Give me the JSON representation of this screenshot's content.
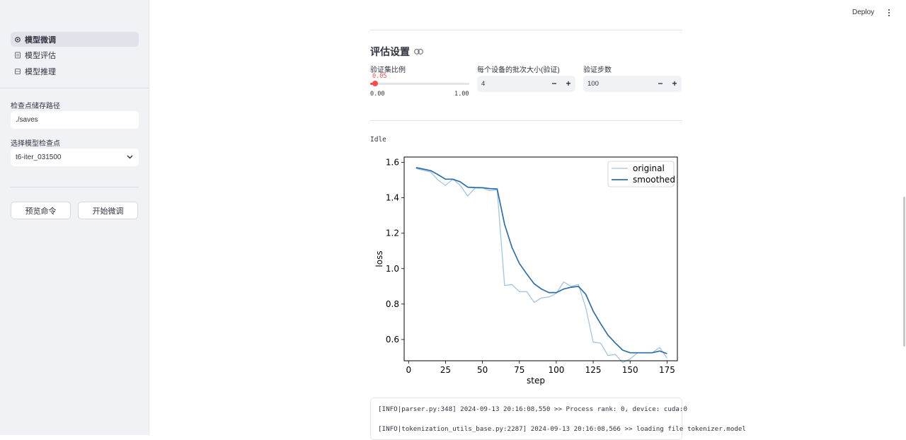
{
  "sidebar": {
    "nav": [
      {
        "label": "模型微调",
        "icon": "gear-icon",
        "active": true
      },
      {
        "label": "模型评估",
        "icon": "document-icon",
        "active": false
      },
      {
        "label": "模型推理",
        "icon": "grid-icon",
        "active": false
      }
    ],
    "checkpoint_path_label": "检查点储存路径",
    "checkpoint_path_value": "./saves",
    "checkpoint_select_label": "选择模型检查点",
    "checkpoint_select_value": "t6-iter_031500",
    "preview_button": "预览命令",
    "start_button": "开始微调"
  },
  "header": {
    "deploy_label": "Deploy",
    "menu_icon": "kebab-menu-icon"
  },
  "eval_settings": {
    "title": "评估设置",
    "link_icon": "link-icon",
    "val_ratio_label": "验证集比例",
    "val_ratio_value": "0.05",
    "val_ratio_fraction": 0.05,
    "val_ratio_min": "0.00",
    "val_ratio_max": "1.00",
    "batch_size_label": "每个设备的批次大小(验证)",
    "batch_size_value": "4",
    "eval_steps_label": "验证步数",
    "eval_steps_value": "100",
    "minus": "−",
    "plus": "+"
  },
  "status": "Idle",
  "chart_data": {
    "type": "line",
    "xlabel": "step",
    "ylabel": "loss",
    "xlim": [
      -3,
      182
    ],
    "ylim": [
      0.48,
      1.63
    ],
    "xticks": [
      0,
      25,
      50,
      75,
      100,
      125,
      150,
      175
    ],
    "yticks": [
      0.6,
      0.8,
      1.0,
      1.2,
      1.4,
      1.6
    ],
    "legend_position": "upper-right",
    "grid": false,
    "series": [
      {
        "name": "original",
        "color": "#a3c4e0",
        "x": [
          5,
          10,
          15,
          20,
          25,
          30,
          35,
          40,
          45,
          50,
          55,
          60,
          65,
          70,
          75,
          80,
          85,
          90,
          95,
          100,
          105,
          110,
          115,
          120,
          125,
          130,
          135,
          140,
          145,
          150,
          155,
          160,
          165,
          170,
          175
        ],
        "y": [
          1.565,
          1.555,
          1.545,
          1.5,
          1.47,
          1.505,
          1.47,
          1.41,
          1.455,
          1.455,
          1.44,
          1.445,
          0.905,
          0.91,
          0.87,
          0.87,
          0.81,
          0.835,
          0.84,
          0.86,
          0.925,
          0.9,
          0.91,
          0.78,
          0.585,
          0.58,
          0.51,
          0.515,
          0.47,
          0.49,
          0.525,
          0.525,
          0.525,
          0.555,
          0.495
        ]
      },
      {
        "name": "smoothed",
        "color": "#2e6ea8",
        "x": [
          5,
          10,
          15,
          20,
          25,
          30,
          35,
          40,
          45,
          50,
          55,
          60,
          65,
          70,
          75,
          80,
          85,
          90,
          95,
          100,
          105,
          110,
          115,
          120,
          125,
          130,
          135,
          140,
          145,
          150,
          155,
          160,
          165,
          170,
          175
        ],
        "y": [
          1.57,
          1.562,
          1.553,
          1.53,
          1.505,
          1.505,
          1.49,
          1.46,
          1.458,
          1.457,
          1.452,
          1.45,
          1.25,
          1.12,
          1.03,
          0.97,
          0.915,
          0.885,
          0.865,
          0.865,
          0.885,
          0.895,
          0.9,
          0.855,
          0.76,
          0.69,
          0.625,
          0.58,
          0.54,
          0.525,
          0.525,
          0.525,
          0.525,
          0.535,
          0.52
        ]
      }
    ]
  },
  "log": {
    "lines": [
      "[INFO|parser.py:348] 2024-09-13 20:16:08,550 >> Process rank: 0, device: cuda:0",
      "[INFO|tokenization_utils_base.py:2287] 2024-09-13 20:16:08,566 >> loading file tokenizer.model"
    ]
  }
}
